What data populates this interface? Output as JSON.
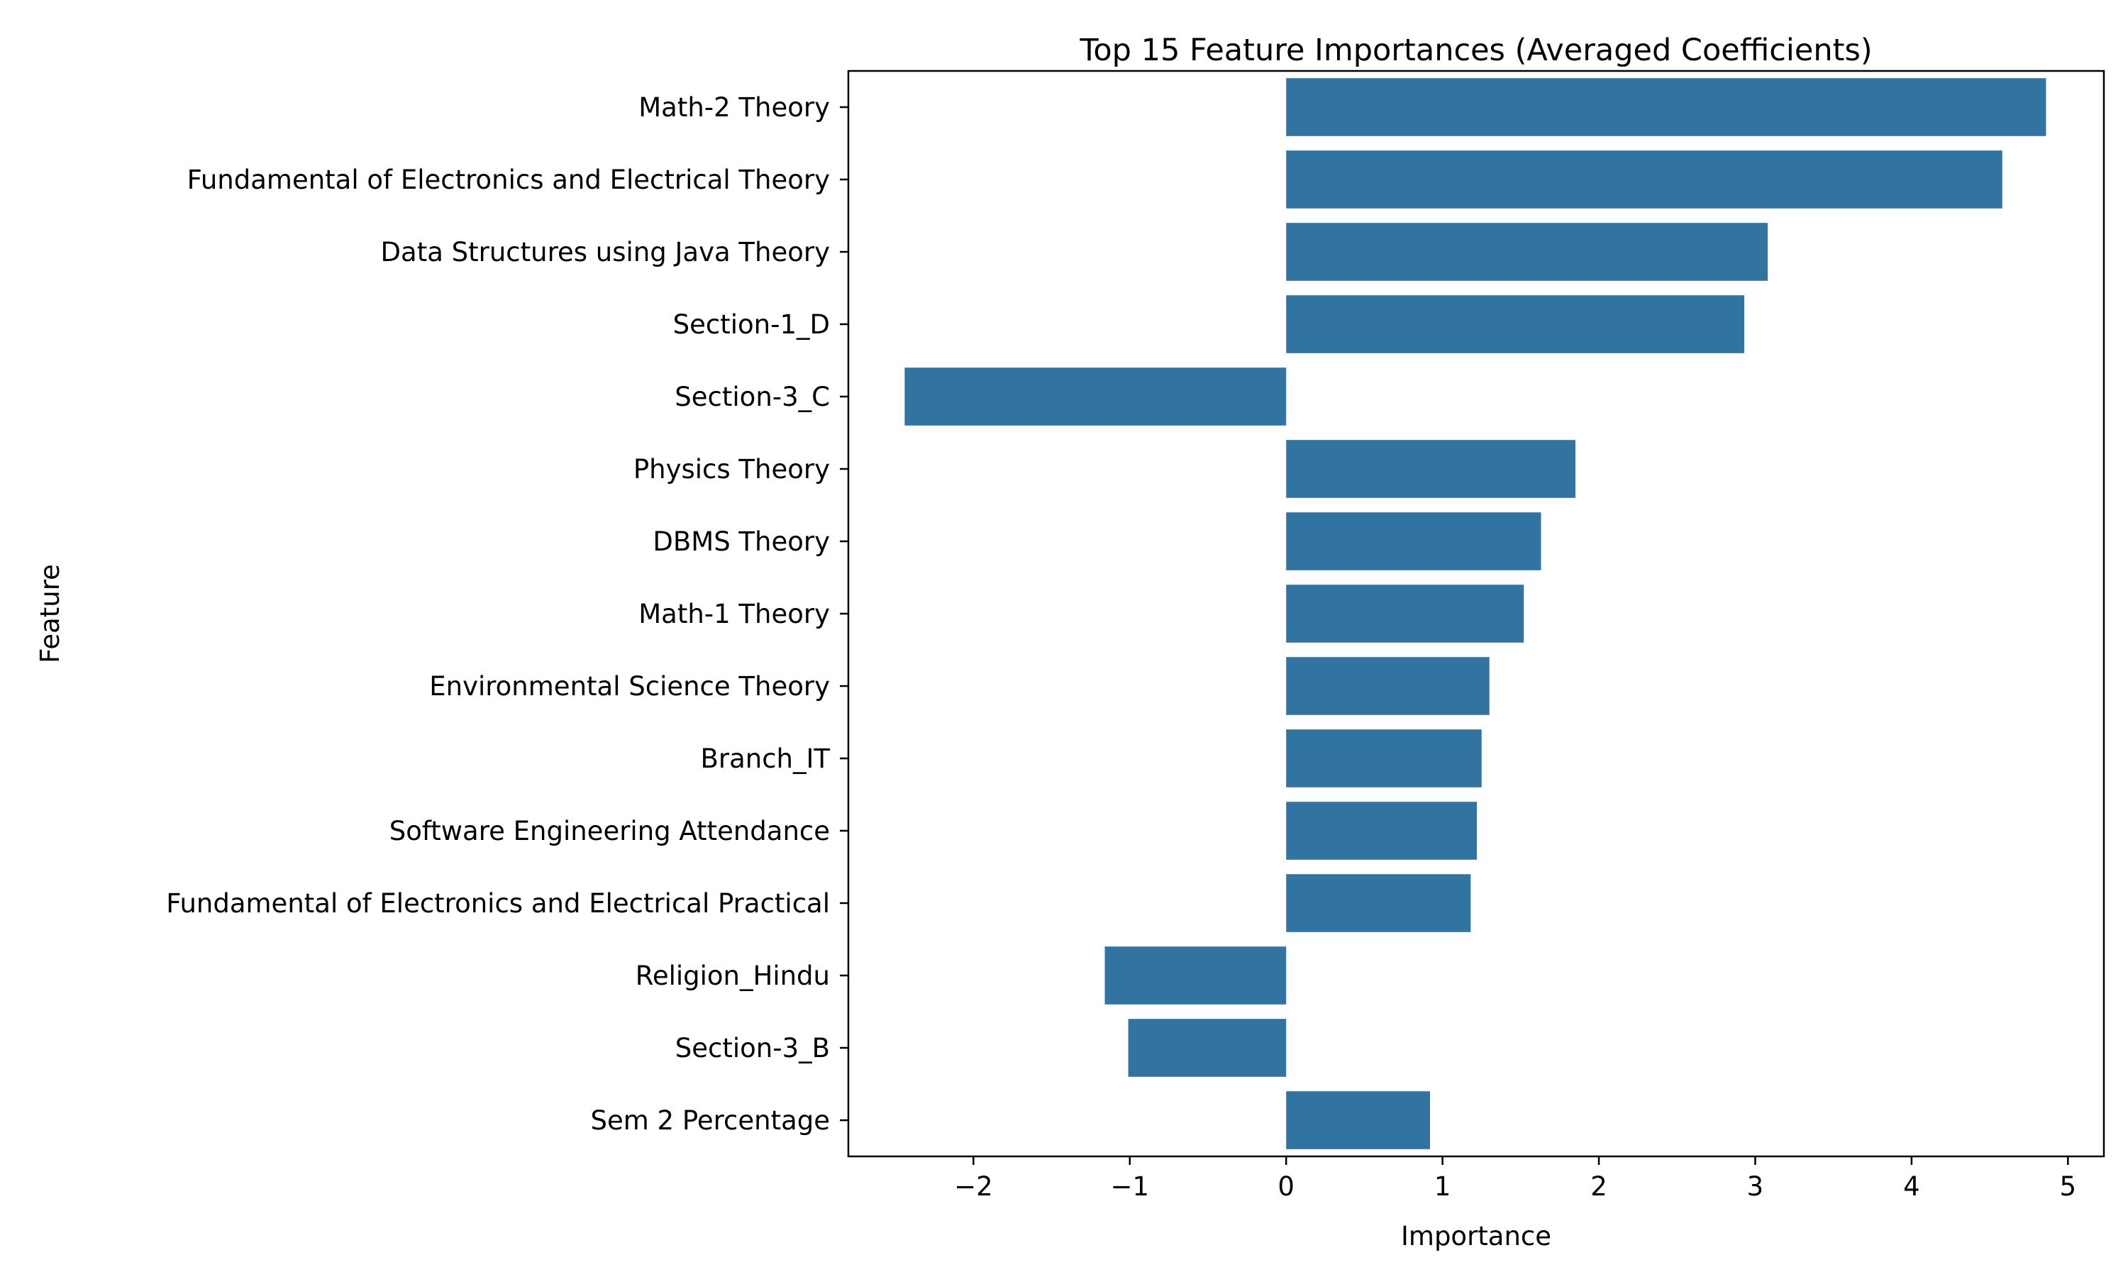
{
  "chart_data": {
    "type": "bar",
    "orientation": "horizontal",
    "title": "Top 15 Feature Importances (Averaged Coefficients)",
    "xlabel": "Importance",
    "ylabel": "Feature",
    "xlim": [
      -2.8,
      5.23
    ],
    "xticks": [
      -2,
      -1,
      0,
      1,
      2,
      3,
      4,
      5
    ],
    "xtick_labels": [
      "−2",
      "−1",
      "0",
      "1",
      "2",
      "3",
      "4",
      "5"
    ],
    "grid": false,
    "legend": "none",
    "bar_color": "#3274a1",
    "categories": [
      "Math-2 Theory",
      "Fundamental of Electronics and Electrical Theory",
      "Data Structures using Java Theory",
      "Section-1_D",
      "Section-3_C",
      "Physics Theory",
      "DBMS Theory",
      "Math-1 Theory",
      "Environmental Science Theory",
      "Branch_IT",
      "Software Engineering Attendance",
      "Fundamental of Electronics and Electrical Practical",
      "Religion_Hindu",
      "Section-3_B",
      "Sem 2 Percentage"
    ],
    "values": [
      4.86,
      4.58,
      3.08,
      2.93,
      -2.44,
      1.85,
      1.63,
      1.52,
      1.3,
      1.25,
      1.22,
      1.18,
      -1.16,
      -1.01,
      0.92
    ]
  }
}
